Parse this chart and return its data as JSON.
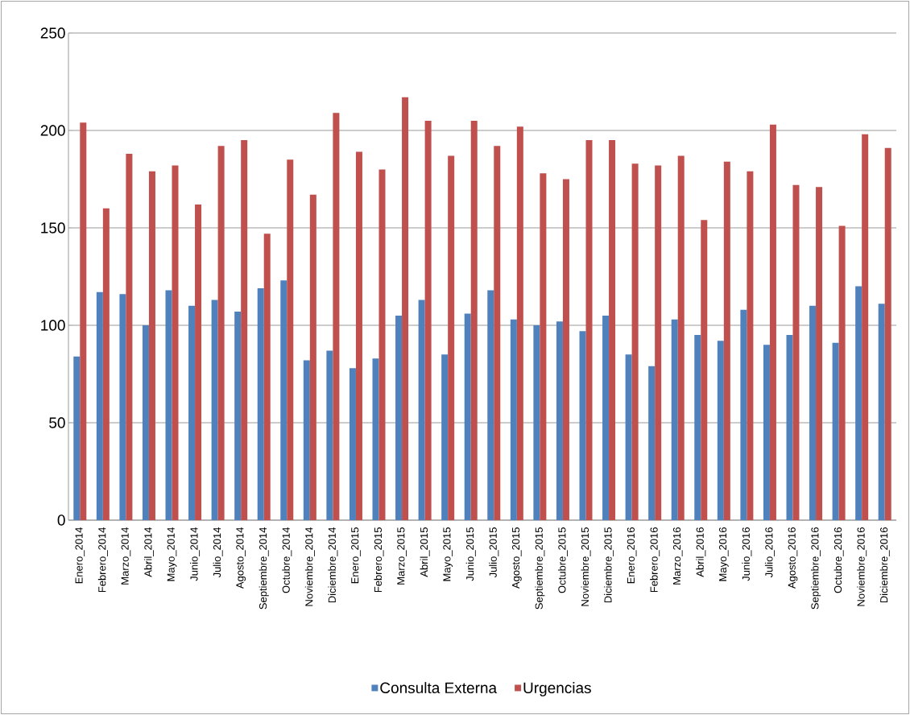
{
  "chart_data": {
    "type": "bar",
    "categories": [
      "Enero_2014",
      "Febrero_2014",
      "Marzo_2014",
      "Abril_2014",
      "Mayo_2014",
      "Junio_2014",
      "Julio_2014",
      "Agosto_2014",
      "Septiembre_2014",
      "Octubre_2014",
      "Noviembre_2014",
      "Diciembre_2014",
      "Enero_2015",
      "Febrero_2015",
      "Marzo_2015",
      "Abril_2015",
      "Mayo_2015",
      "Junio_2015",
      "Julio_2015",
      "Agosto_2015",
      "Septiembre_2015",
      "Octubre_2015",
      "Noviembre_2015",
      "Diciembre_2015",
      "Enero_2016",
      "Febrero_2016",
      "Marzo_2016",
      "Abril_2016",
      "Mayo_2016",
      "Junio_2016",
      "Julio_2016",
      "Agosto_2016",
      "Septiembre_2016",
      "Octubre_2016",
      "Noviembre_2016",
      "Diciembre_2016"
    ],
    "series": [
      {
        "name": "Consulta Externa",
        "color": "#4f81bd",
        "values": [
          84,
          117,
          116,
          100,
          118,
          110,
          113,
          107,
          119,
          123,
          82,
          87,
          78,
          83,
          105,
          113,
          85,
          106,
          118,
          103,
          100,
          102,
          97,
          105,
          85,
          79,
          103,
          95,
          92,
          108,
          90,
          95,
          110,
          91,
          120,
          111
        ]
      },
      {
        "name": "Urgencias",
        "color": "#c0504d",
        "values": [
          204,
          160,
          188,
          179,
          182,
          162,
          192,
          195,
          147,
          185,
          167,
          209,
          189,
          180,
          217,
          205,
          187,
          205,
          192,
          202,
          178,
          175,
          195,
          195,
          183,
          182,
          187,
          154,
          184,
          179,
          203,
          172,
          171,
          151,
          198,
          191
        ]
      }
    ],
    "ylim": [
      0,
      250
    ],
    "yticks": [
      0,
      50,
      100,
      150,
      200,
      250
    ],
    "grid": "y",
    "legend": "bottom"
  }
}
